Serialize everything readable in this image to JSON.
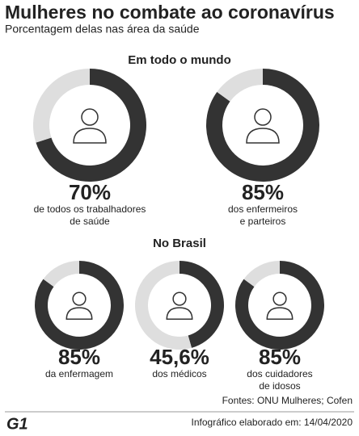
{
  "header": {
    "title": "Mulheres no combate ao coronavírus",
    "subtitle": "Porcentagem delas nas área da saúde"
  },
  "sections": [
    {
      "title": "Em todo o mundo"
    },
    {
      "title": "No Brasil"
    }
  ],
  "chart_data": [
    {
      "type": "donut",
      "values": [
        70,
        30
      ],
      "value_labels": [
        "70%",
        null
      ],
      "colors": [
        "#333333",
        "#dedede"
      ],
      "caption": [
        "de todos os trabalhadores",
        "de saúde"
      ]
    },
    {
      "type": "donut",
      "values": [
        85,
        15
      ],
      "value_labels": [
        "85%",
        null
      ],
      "colors": [
        "#333333",
        "#dedede"
      ],
      "caption": [
        "dos enfermeiros",
        "e parteiros"
      ]
    },
    {
      "type": "donut",
      "values": [
        85,
        15
      ],
      "value_labels": [
        "85%",
        null
      ],
      "colors": [
        "#333333",
        "#dedede"
      ],
      "caption": [
        "da enfermagem"
      ]
    },
    {
      "type": "donut",
      "values": [
        45.6,
        54.4
      ],
      "value_labels": [
        "45,6%",
        null
      ],
      "colors": [
        "#333333",
        "#dedede"
      ],
      "caption": [
        "dos médicos"
      ]
    },
    {
      "type": "donut",
      "values": [
        85,
        15
      ],
      "value_labels": [
        "85%",
        null
      ],
      "colors": [
        "#333333",
        "#dedede"
      ],
      "caption": [
        "dos cuidadores",
        "de idosos"
      ]
    }
  ],
  "footer": {
    "sources": "Fontes: ONU Mulheres; Cofen",
    "logo": "G1",
    "credit": "Infográfico elaborado em: 14/04/2020"
  }
}
